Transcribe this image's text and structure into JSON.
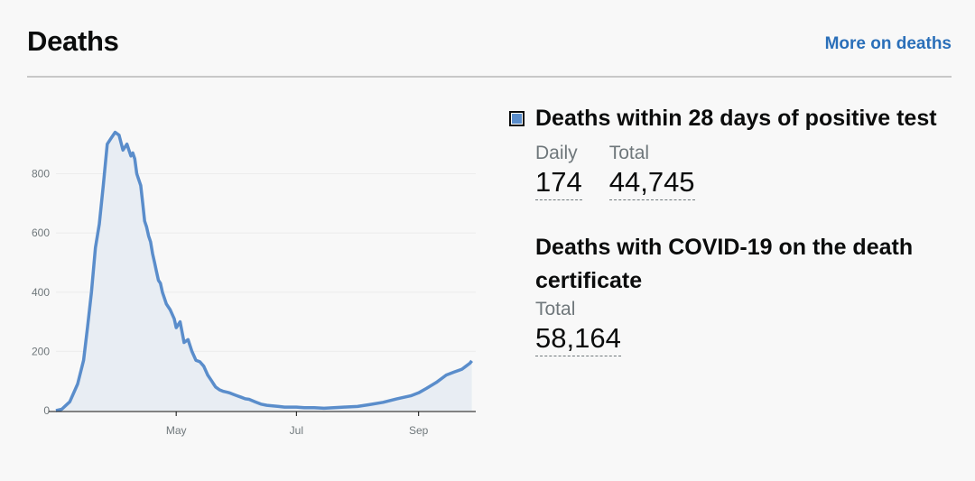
{
  "card": {
    "title": "Deaths",
    "more_link": "More on deaths"
  },
  "metrics": {
    "primary": {
      "title": "Deaths within 28 days of positive test",
      "daily_label": "Daily",
      "daily_value": "174",
      "total_label": "Total",
      "total_value": "44,745",
      "legend_color": "#5a8dcb"
    },
    "secondary": {
      "title": "Deaths with COVID-19 on the death certificate",
      "total_label": "Total",
      "total_value": "58,164"
    }
  },
  "chart_data": {
    "type": "area",
    "title": "",
    "xlabel": "",
    "ylabel": "",
    "ylim": [
      0,
      960
    ],
    "yticks": [
      0,
      200,
      400,
      600,
      800
    ],
    "xlim": [
      "2020-03-01",
      "2020-09-30"
    ],
    "xticks": [
      {
        "date": "2020-05-01",
        "label": "May"
      },
      {
        "date": "2020-07-01",
        "label": "Jul"
      },
      {
        "date": "2020-09-01",
        "label": "Sep"
      }
    ],
    "grid": true,
    "line_color": "#5a8dcb",
    "fill_color": "#e8edf3",
    "series": [
      {
        "x": [
          "2020-03-01",
          "2020-03-04",
          "2020-03-08",
          "2020-03-12",
          "2020-03-15",
          "2020-03-17",
          "2020-03-19",
          "2020-03-21",
          "2020-03-23",
          "2020-03-25",
          "2020-03-27",
          "2020-03-29",
          "2020-03-31",
          "2020-04-02",
          "2020-04-04",
          "2020-04-06",
          "2020-04-08",
          "2020-04-09",
          "2020-04-10",
          "2020-04-11",
          "2020-04-12",
          "2020-04-13",
          "2020-04-14",
          "2020-04-15",
          "2020-04-16",
          "2020-04-17",
          "2020-04-18",
          "2020-04-19",
          "2020-04-20",
          "2020-04-21",
          "2020-04-22",
          "2020-04-23",
          "2020-04-24",
          "2020-04-25",
          "2020-04-26",
          "2020-04-28",
          "2020-04-30",
          "2020-05-01",
          "2020-05-03",
          "2020-05-05",
          "2020-05-07",
          "2020-05-09",
          "2020-05-11",
          "2020-05-13",
          "2020-05-15",
          "2020-05-17",
          "2020-05-19",
          "2020-05-20",
          "2020-05-21",
          "2020-05-23",
          "2020-05-25",
          "2020-05-27",
          "2020-05-28",
          "2020-05-30",
          "2020-06-01",
          "2020-06-03",
          "2020-06-05",
          "2020-06-07",
          "2020-06-10",
          "2020-06-13",
          "2020-06-16",
          "2020-06-19",
          "2020-06-22",
          "2020-06-25",
          "2020-06-28",
          "2020-07-01",
          "2020-07-05",
          "2020-07-10",
          "2020-07-15",
          "2020-07-20",
          "2020-07-25",
          "2020-08-01",
          "2020-08-07",
          "2020-08-14",
          "2020-08-21",
          "2020-08-28",
          "2020-09-01",
          "2020-09-05",
          "2020-09-10",
          "2020-09-15",
          "2020-09-19",
          "2020-09-23",
          "2020-09-25",
          "2020-09-27",
          "2020-09-28"
        ],
        "y": [
          0,
          5,
          30,
          90,
          170,
          280,
          400,
          550,
          630,
          760,
          900,
          920,
          940,
          930,
          880,
          900,
          860,
          870,
          850,
          800,
          780,
          760,
          700,
          640,
          620,
          590,
          570,
          530,
          500,
          470,
          440,
          430,
          400,
          380,
          360,
          340,
          310,
          280,
          300,
          230,
          240,
          200,
          170,
          165,
          150,
          120,
          100,
          90,
          80,
          70,
          65,
          62,
          60,
          55,
          50,
          45,
          40,
          38,
          30,
          22,
          18,
          16,
          14,
          12,
          12,
          12,
          10,
          10,
          8,
          10,
          12,
          14,
          20,
          28,
          40,
          50,
          60,
          75,
          95,
          120,
          130,
          140,
          150,
          160,
          168
        ],
        "name": ""
      }
    ]
  }
}
